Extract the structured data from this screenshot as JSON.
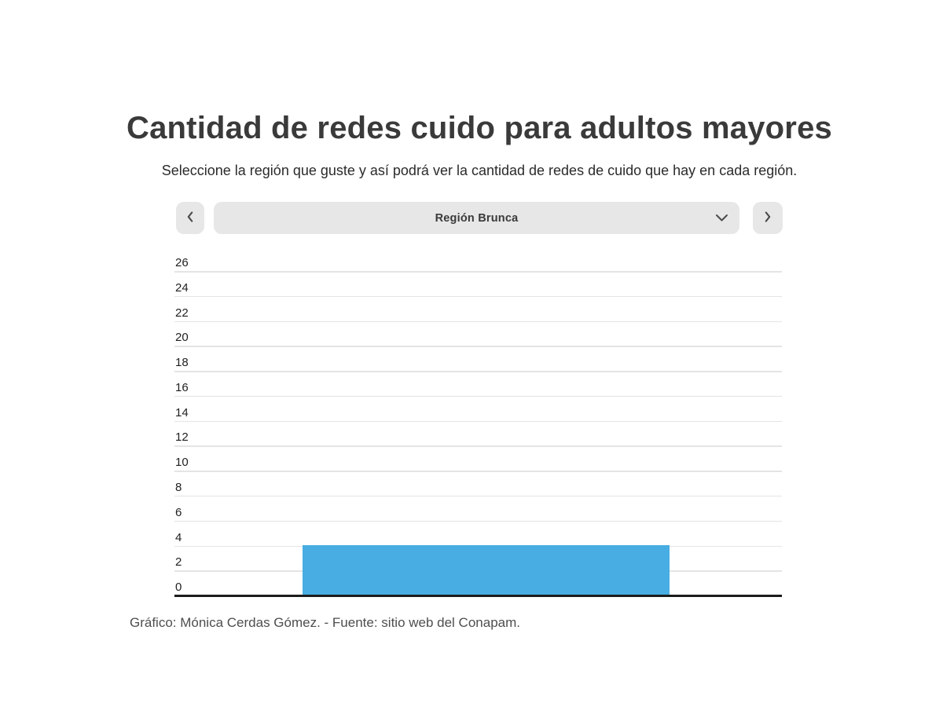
{
  "header": {
    "title": "Cantidad de redes cuido para adultos mayores",
    "subtitle": "Seleccione la región que guste y así podrá ver la cantidad de redes de cuido que hay en cada región."
  },
  "selector": {
    "selected_region": "Región Brunca",
    "icons": {
      "prev": "chevron-left-icon",
      "next": "chevron-right-icon",
      "dropdown": "chevron-down-icon"
    }
  },
  "chart_data": {
    "type": "bar",
    "categories": [
      "Región Brunca"
    ],
    "values": [
      4
    ],
    "title": "Cantidad de redes cuido para adultos mayores",
    "xlabel": "",
    "ylabel": "",
    "ylim": [
      0,
      26
    ],
    "yticks": [
      0,
      2,
      4,
      6,
      8,
      10,
      12,
      14,
      16,
      18,
      20,
      22,
      24,
      26
    ],
    "grid": "horizontal",
    "legend": "none",
    "bar_color": "#48ade2"
  },
  "footer": {
    "credit": "Gráfico: Mónica Cerdas Gómez. - Fuente: sitio web del Conapam."
  }
}
